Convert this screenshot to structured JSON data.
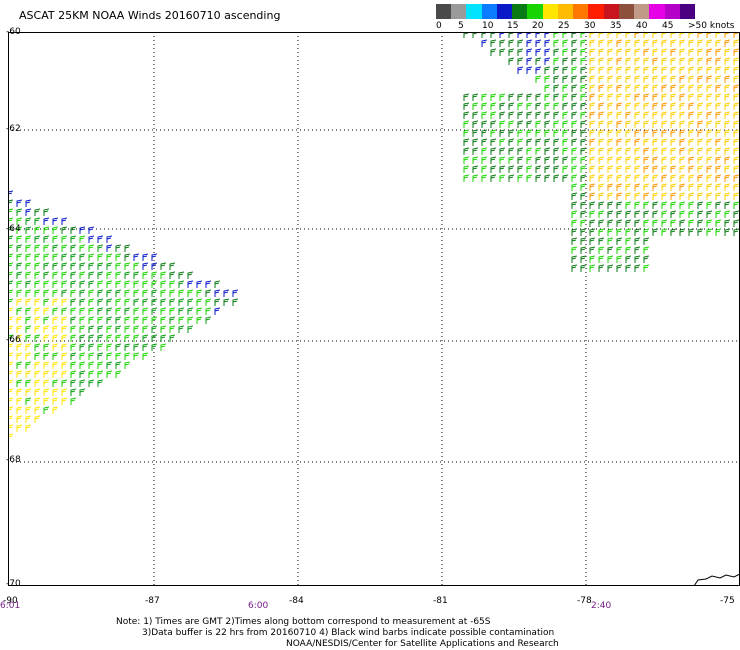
{
  "title": "ASCAT 25KM NOAA Winds 20160710 ascending",
  "legend": {
    "colors": [
      "#4a4a4a",
      "#9a9a9a",
      "#00e4ff",
      "#0b7bff",
      "#0a19c8",
      "#0a7a14",
      "#18d400",
      "#ffe600",
      "#ffbc00",
      "#ff7800",
      "#ff1e00",
      "#c8141e",
      "#8c503c",
      "#c09a86",
      "#e600e6",
      "#b400c8",
      "#4a0080"
    ],
    "labels": [
      "0",
      "5",
      "10",
      "15",
      "20",
      "25",
      "30",
      "35",
      "40",
      "45",
      ">50 knots"
    ]
  },
  "map": {
    "lat_labels": [
      "-60",
      "-62",
      "-64",
      "-66",
      "-68",
      "-70"
    ],
    "lon_labels": [
      "-90",
      "-87",
      "-84",
      "-81",
      "-78",
      "-75"
    ],
    "time_labels": [
      "6:01",
      "6:00",
      "2:40"
    ]
  },
  "notes": {
    "line1": "Note: 1) Times are GMT 2)Times along bottom correspond to measurement at -65S",
    "line2": "3)Data buffer is 22 hrs from 20160710 4) Black wind barbs indicate possible contamination",
    "line3": "NOAA/NESDIS/Center for Satellite Applications and Research"
  }
}
